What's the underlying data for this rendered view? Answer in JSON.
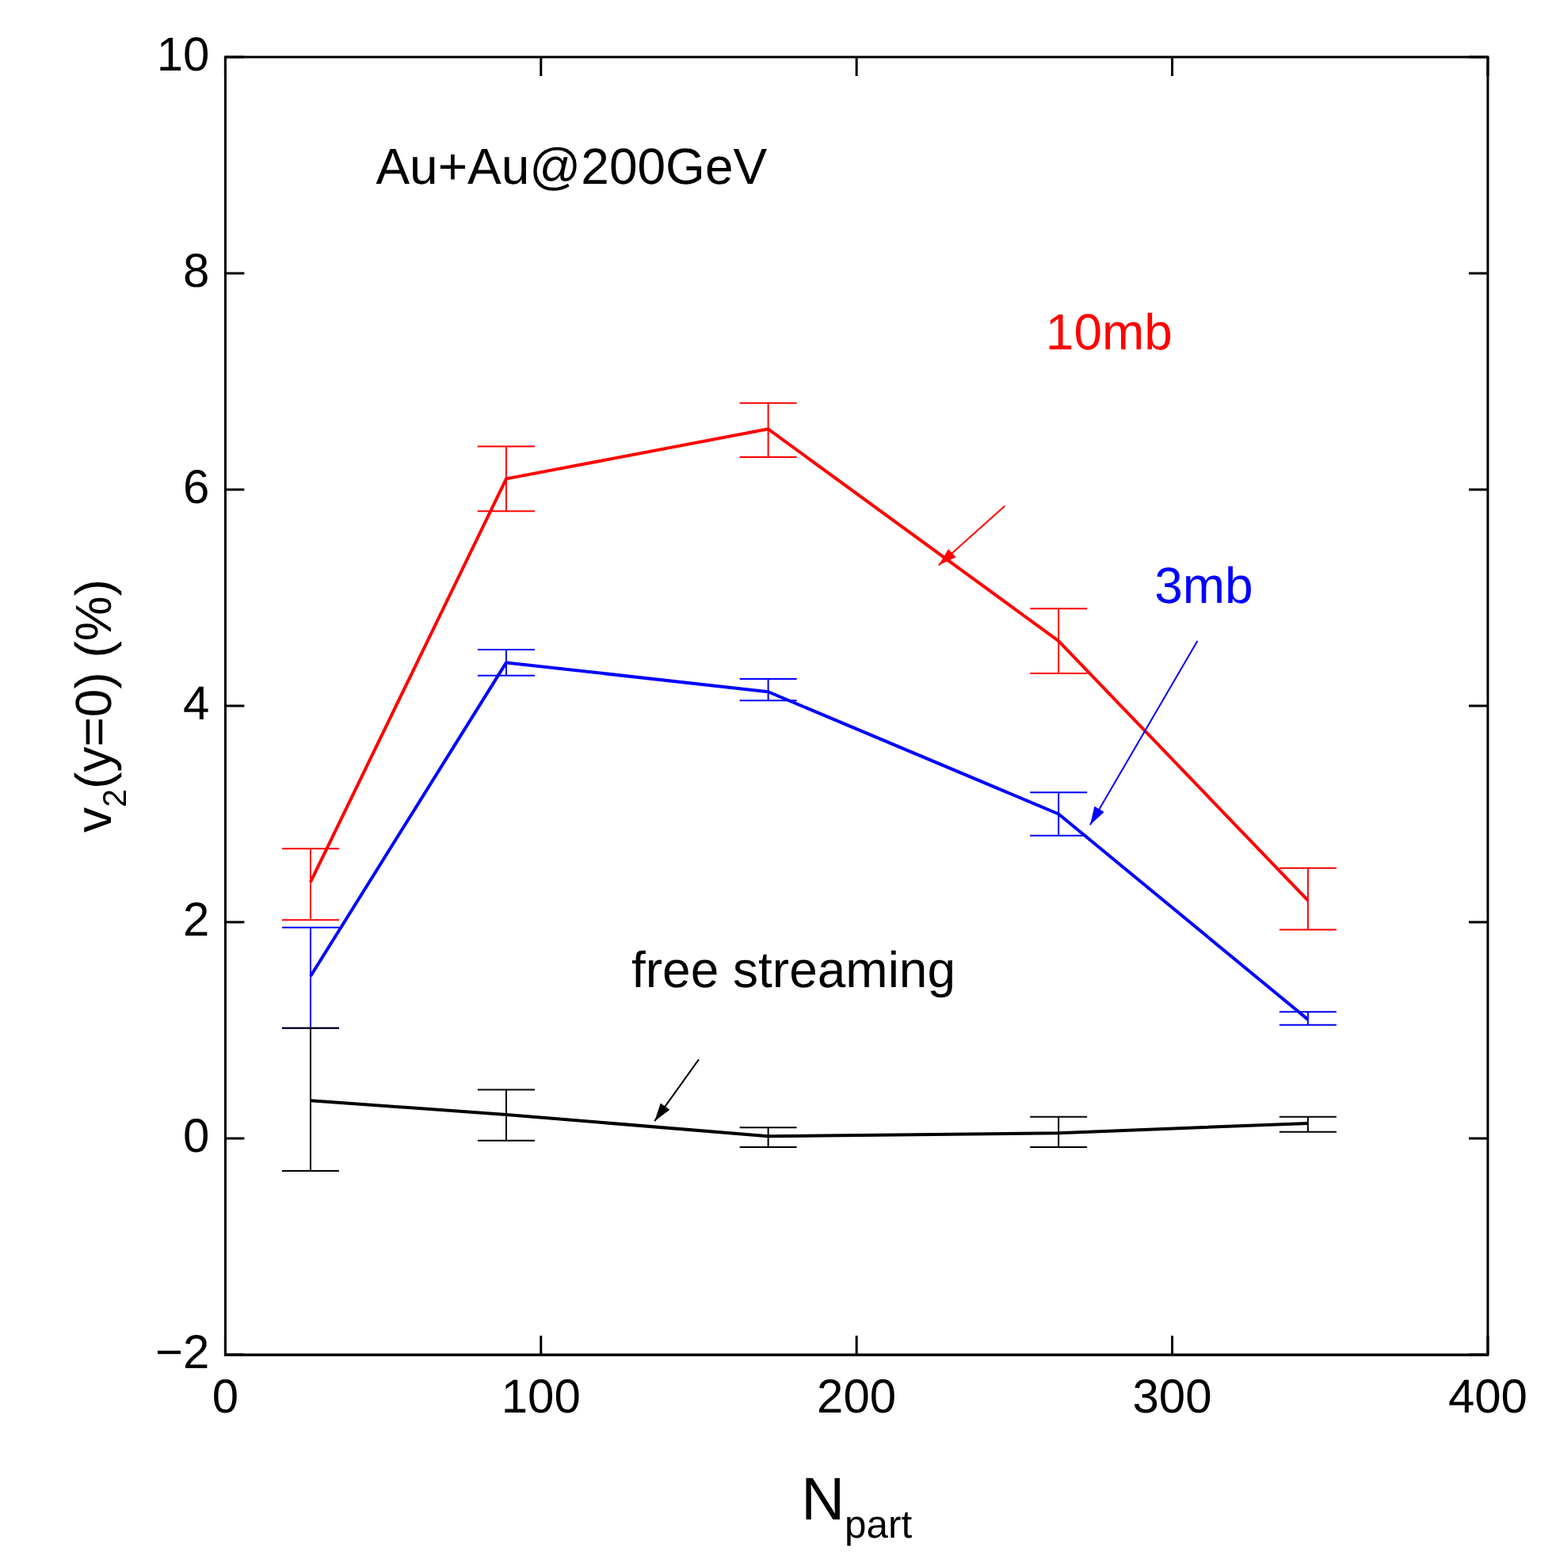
{
  "chart_data": {
    "type": "line",
    "xlabel": "N$_{part}$",
    "ylabel": "v$_{2}$(y=0) (%)",
    "annotations": [
      "Au+Au@200GeV"
    ],
    "x": [
      27,
      89,
      172,
      264,
      343
    ],
    "series": [
      {
        "name": "10mb",
        "color": "#ff0000",
        "values": [
          2.37,
          6.1,
          6.56,
          4.6,
          2.2
        ],
        "errors": [
          [
            2.02,
            2.68
          ],
          [
            5.8,
            6.4
          ],
          [
            6.3,
            6.8
          ],
          [
            4.3,
            4.9
          ],
          [
            1.93,
            2.5
          ]
        ]
      },
      {
        "name": "3mb",
        "color": "#0000ff",
        "values": [
          1.5,
          4.4,
          4.13,
          3.0,
          1.1
        ],
        "errors": [
          [
            1.02,
            1.95
          ],
          [
            4.28,
            4.52
          ],
          [
            4.05,
            4.25
          ],
          [
            2.8,
            3.2
          ],
          [
            1.05,
            1.17
          ]
        ]
      },
      {
        "name": "free streaming",
        "color": "#000000",
        "values": [
          0.35,
          0.22,
          0.02,
          0.05,
          0.14
        ],
        "errors": [
          [
            -0.3,
            1.02
          ],
          [
            -0.02,
            0.45
          ],
          [
            -0.08,
            0.1
          ],
          [
            -0.08,
            0.2
          ],
          [
            0.06,
            0.2
          ]
        ]
      }
    ],
    "xlim": [
      0,
      400
    ],
    "xticks": [
      0,
      100,
      200,
      300,
      400
    ],
    "ylim": [
      -2,
      10
    ],
    "yticks": [
      {
        "value": -2,
        "label": "−2"
      },
      0,
      2,
      4,
      6,
      8,
      10
    ],
    "grid": false,
    "legend": false,
    "marker": "none",
    "line_style": "solid"
  }
}
